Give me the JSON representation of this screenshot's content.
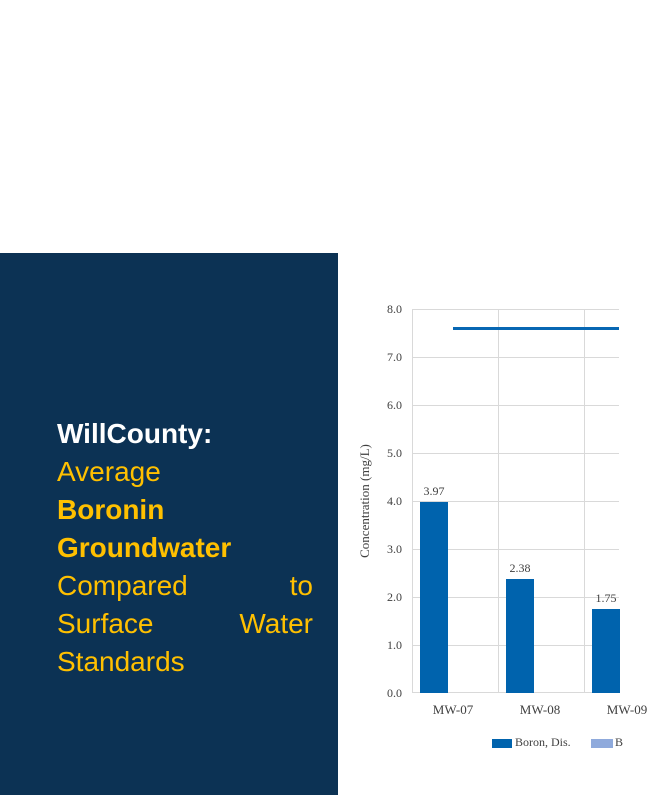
{
  "panel": {
    "background_color": "#0C3254",
    "title_color": "#FFFFFF",
    "accent_color": "#FFC000",
    "lines": [
      "WillCounty:",
      "Average",
      "Boronin",
      "Groundwater",
      "Compared to",
      "Surface Water",
      "Standards"
    ]
  },
  "chart_data": {
    "type": "bar",
    "categories": [
      "MW-07",
      "MW-08",
      "MW-09"
    ],
    "series": [
      {
        "name": "Boron, Dis.",
        "type": "bar",
        "color": "#0063AD",
        "values": [
          3.97,
          2.38,
          1.75
        ]
      }
    ],
    "reference_line": {
      "value": 7.6,
      "color": "#0767B3"
    },
    "data_labels": [
      "3.97",
      "2.38",
      "1.75"
    ],
    "title": "",
    "xlabel": "",
    "ylabel": "Concentration (mg/L)",
    "ylim": [
      0.0,
      8.0
    ],
    "ytick_step": 1.0,
    "yticks": [
      "8.0",
      "7.0",
      "6.0",
      "5.0",
      "4.0",
      "3.0",
      "2.0",
      "1.0",
      "0.0"
    ],
    "grid": true,
    "gridline_color": "#D9D9D9",
    "legend_position": "bottom",
    "legend": [
      {
        "label": "Boron, Dis.",
        "color": "#0063AD"
      },
      {
        "label": "B",
        "color": "#8FAADC"
      }
    ]
  }
}
